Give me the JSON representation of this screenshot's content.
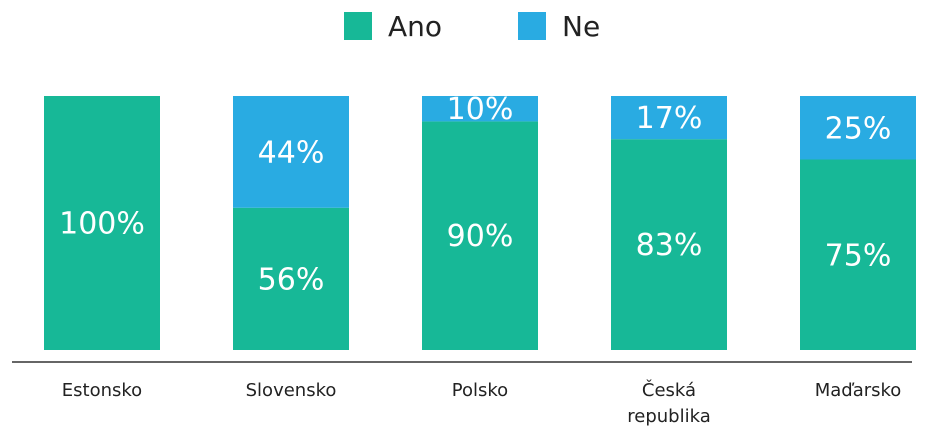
{
  "chart_data": {
    "type": "stacked_bar",
    "categories": [
      "Estonsko",
      "Slovensko",
      "Polsko",
      "Česká republika",
      "Maďarsko"
    ],
    "series": [
      {
        "name": "Ano",
        "color": "#17b897",
        "values": [
          100,
          56,
          90,
          83,
          75
        ],
        "value_labels": [
          "100%",
          "56%",
          "90%",
          "83%",
          "75%"
        ]
      },
      {
        "name": "Ne",
        "color": "#29abe2",
        "values": [
          0,
          44,
          10,
          17,
          25
        ],
        "value_labels": [
          null,
          "44%",
          "10%",
          "17%",
          "25%"
        ]
      }
    ],
    "ylim": [
      0,
      100
    ],
    "legend": "top"
  }
}
